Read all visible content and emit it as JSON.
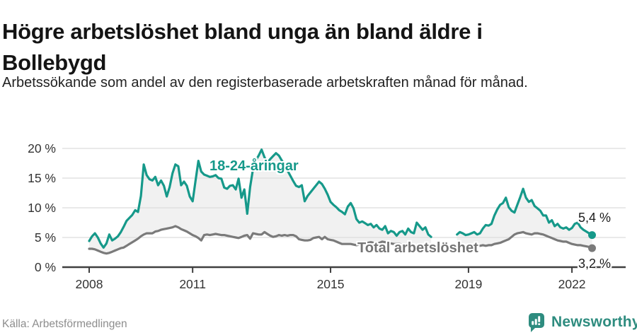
{
  "header": {
    "title": "Högre arbetslöshet bland unga än bland äldre i Bollebygd",
    "title_lines": [
      "Högre arbetslöshet bland unga än bland äldre i",
      "Bollebygd"
    ],
    "subtitle": "Arbetssökande som andel av den registerbaserade arbetskraften månad för månad."
  },
  "footer": {
    "source": "Källa: Arbetsförmedlingen",
    "brand": "Newsworthy",
    "brand_icon": "newsworthy-speech-bubble-barchart-icon"
  },
  "colors": {
    "youth_line": "#16998a",
    "total_line": "#7a7a7a",
    "total_label": "#757575",
    "band_fill": "#f1f1f1",
    "grid": "#dcdcdc",
    "axis": "#3f3f3f",
    "tick_text": "#333333",
    "end_label_text": "#1c1c1c",
    "brand": "#2e8c7f",
    "source_text": "#8d8d8d"
  },
  "chart_data": {
    "type": "line",
    "title": "Högre arbetslöshet bland unga än bland äldre i Bollebygd",
    "subtitle": "Arbetssökande som andel av den registerbaserade arbetskraften månad för månad.",
    "unit": "%",
    "frequency": "monthly",
    "x_start": "2008-01",
    "x_end": "2022-08",
    "x_ticks": [
      {
        "label": "2008",
        "month_index": 0
      },
      {
        "label": "2011",
        "month_index": 36
      },
      {
        "label": "2015",
        "month_index": 84
      },
      {
        "label": "2019",
        "month_index": 132
      },
      {
        "label": "2022",
        "month_index": 168
      }
    ],
    "y_ticks": [
      {
        "label": "0 %",
        "value": 0
      },
      {
        "label": "5 %",
        "value": 5
      },
      {
        "label": "10 %",
        "value": 10
      },
      {
        "label": "15 %",
        "value": 15
      },
      {
        "label": "20 %",
        "value": 20
      }
    ],
    "ylim": [
      0,
      21
    ],
    "grid": "horizontal",
    "legend_position": "inline-labels",
    "band_fill_between_series": true,
    "missing_data_note": "nulls = months with no published value for 18-24-åringar (early-to-mid 2018)",
    "series": [
      {
        "name": "18-24-åringar",
        "color": "#16998a",
        "end_label": "5,4 %",
        "end_value": 5.4,
        "values": [
          4.4,
          5.2,
          5.7,
          5.0,
          4.0,
          3.3,
          4.0,
          5.5,
          4.5,
          4.8,
          5.2,
          5.9,
          6.8,
          7.8,
          8.3,
          8.8,
          9.6,
          9.3,
          12.0,
          17.3,
          15.5,
          14.8,
          14.6,
          15.2,
          13.8,
          14.6,
          13.7,
          11.9,
          13.5,
          15.8,
          17.3,
          17.0,
          13.8,
          14.4,
          13.7,
          11.9,
          11.1,
          14.5,
          17.9,
          16.1,
          15.6,
          15.4,
          15.2,
          15.3,
          15.5,
          15.0,
          14.9,
          13.4,
          13.2,
          13.7,
          13.8,
          13.1,
          14.9,
          11.7,
          13.1,
          9.0,
          13.5,
          16.5,
          18.0,
          18.8,
          19.8,
          18.5,
          17.6,
          18.2,
          18.7,
          19.2,
          18.8,
          18.0,
          17.2,
          16.3,
          15.4,
          14.5,
          13.7,
          13.5,
          13.8,
          11.1,
          12.0,
          12.6,
          13.2,
          13.8,
          14.4,
          14.0,
          13.2,
          12.2,
          11.0,
          10.5,
          10.1,
          9.6,
          9.3,
          8.9,
          10.2,
          10.8,
          9.9,
          8.1,
          7.5,
          7.7,
          7.4,
          7.1,
          7.3,
          6.7,
          7.1,
          6.5,
          6.3,
          6.9,
          5.7,
          6.1,
          5.9,
          5.3,
          5.9,
          6.1,
          5.5,
          6.5,
          5.9,
          5.7,
          7.5,
          6.9,
          6.3,
          6.7,
          5.5,
          5.1,
          null,
          null,
          null,
          null,
          null,
          null,
          null,
          null,
          5.5,
          5.9,
          5.7,
          5.4,
          5.5,
          5.7,
          5.9,
          5.5,
          5.7,
          6.5,
          7.1,
          7.0,
          7.3,
          8.7,
          9.7,
          10.5,
          10.8,
          11.7,
          10.1,
          9.5,
          9.2,
          10.5,
          11.8,
          13.2,
          11.7,
          11.0,
          11.3,
          10.3,
          9.9,
          9.5,
          8.7,
          8.7,
          7.5,
          7.9,
          6.9,
          7.3,
          6.7,
          6.5,
          6.7,
          6.3,
          6.6,
          7.3,
          7.5,
          6.7,
          6.3,
          6.0,
          5.7,
          5.4
        ]
      },
      {
        "name": "Total arbetslöshet",
        "color": "#7a7a7a",
        "end_label": "3,2 %",
        "end_value": 3.2,
        "values": [
          3.1,
          3.1,
          3.0,
          2.8,
          2.6,
          2.4,
          2.3,
          2.4,
          2.6,
          2.8,
          3.0,
          3.2,
          3.3,
          3.6,
          3.9,
          4.2,
          4.5,
          4.8,
          5.2,
          5.5,
          5.7,
          5.7,
          5.7,
          6.0,
          6.1,
          6.3,
          6.4,
          6.5,
          6.6,
          6.7,
          6.9,
          6.7,
          6.4,
          6.2,
          6.0,
          5.7,
          5.4,
          5.2,
          4.9,
          4.5,
          5.4,
          5.5,
          5.4,
          5.5,
          5.6,
          5.5,
          5.4,
          5.4,
          5.3,
          5.2,
          5.1,
          5.0,
          4.9,
          5.1,
          5.3,
          5.4,
          4.8,
          5.7,
          5.6,
          5.5,
          5.5,
          5.9,
          5.6,
          5.3,
          5.1,
          5.2,
          5.4,
          5.3,
          5.4,
          5.3,
          5.4,
          5.4,
          5.2,
          4.7,
          4.6,
          4.5,
          4.5,
          4.6,
          4.9,
          5.0,
          5.1,
          4.7,
          5.1,
          4.7,
          4.6,
          4.5,
          4.3,
          4.1,
          3.9,
          3.9,
          3.9,
          3.9,
          3.8,
          3.7,
          3.8,
          4.0,
          4.1,
          4.1,
          4.2,
          4.1,
          4.0,
          4.1,
          4.3,
          4.2,
          4.1,
          4.0,
          3.9,
          3.9,
          3.9,
          3.8,
          3.8,
          3.7,
          3.7,
          3.8,
          3.7,
          3.6,
          3.6,
          3.5,
          3.5,
          3.6,
          3.6,
          3.5,
          3.5,
          3.4,
          3.4,
          3.5,
          3.4,
          3.4,
          3.5,
          3.4,
          3.5,
          3.5,
          3.5,
          3.6,
          3.5,
          3.6,
          3.6,
          3.7,
          3.6,
          3.7,
          3.7,
          3.9,
          4.0,
          4.1,
          4.3,
          4.5,
          4.7,
          5.1,
          5.5,
          5.7,
          5.8,
          5.9,
          5.7,
          5.6,
          5.5,
          5.7,
          5.7,
          5.6,
          5.5,
          5.3,
          5.1,
          4.9,
          4.7,
          4.5,
          4.4,
          4.3,
          4.3,
          4.1,
          3.9,
          3.8,
          3.7,
          3.7,
          3.6,
          3.5,
          3.4,
          3.2
        ]
      }
    ]
  }
}
